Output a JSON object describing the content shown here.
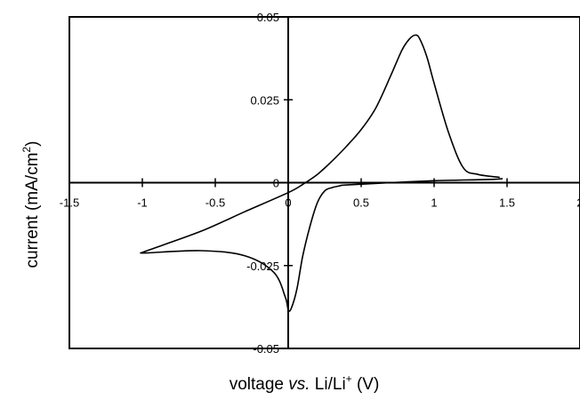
{
  "chart_data": {
    "type": "line",
    "title": "",
    "xlabel": {
      "text": "voltage ",
      "italic": "vs.",
      "mid": " Li/Li",
      "sup": "+",
      "tail": " (V)"
    },
    "ylabel": {
      "text": "current (mA/cm",
      "sup": "2",
      "tail": ")"
    },
    "xlim": [
      -1.5,
      2
    ],
    "ylim": [
      -0.05,
      0.05
    ],
    "x_ticks": [
      -1.5,
      -1,
      -0.5,
      0,
      0.5,
      1,
      1.5,
      2
    ],
    "x_tick_labels": [
      "-1.5",
      "-1",
      "-0.5",
      "0",
      "0.5",
      "1",
      "1.5",
      "2"
    ],
    "y_ticks": [
      -0.05,
      -0.025,
      0,
      0.025,
      0.05
    ],
    "y_tick_labels": [
      "-0.05",
      "-0.025",
      "0",
      "0.025",
      "0.05"
    ],
    "grid": false,
    "legend": false,
    "colors": {
      "line": "#000000",
      "axis": "#000000",
      "frame": "#000000"
    },
    "series": [
      {
        "x": [
          1.45,
          1.3,
          1.2,
          1.1,
          1.0,
          0.95,
          0.9,
          0.87,
          0.83,
          0.78,
          0.7,
          0.6,
          0.5,
          0.4,
          0.3,
          0.2,
          0.1,
          0.0,
          -0.3,
          -0.6,
          -0.98,
          -0.99,
          -0.98,
          -0.6,
          -0.3,
          -0.1,
          -0.02,
          0.0,
          0.02,
          0.06,
          0.1,
          0.15,
          0.2,
          0.25,
          0.3,
          0.35,
          0.4,
          0.7,
          1.0,
          1.2,
          1.4,
          1.47
        ],
        "y": [
          0.0016,
          0.0025,
          0.0045,
          0.015,
          0.03,
          0.038,
          0.0435,
          0.0445,
          0.0433,
          0.04,
          0.032,
          0.0225,
          0.016,
          0.011,
          0.0065,
          0.0025,
          -0.0005,
          -0.003,
          -0.0088,
          -0.0147,
          -0.0207,
          -0.021,
          -0.0212,
          -0.0205,
          -0.022,
          -0.027,
          -0.0345,
          -0.0383,
          -0.038,
          -0.032,
          -0.022,
          -0.013,
          -0.006,
          -0.0025,
          -0.0015,
          -0.001,
          -0.0007,
          0.0,
          0.0006,
          0.0008,
          0.001,
          0.0012
        ]
      }
    ]
  }
}
